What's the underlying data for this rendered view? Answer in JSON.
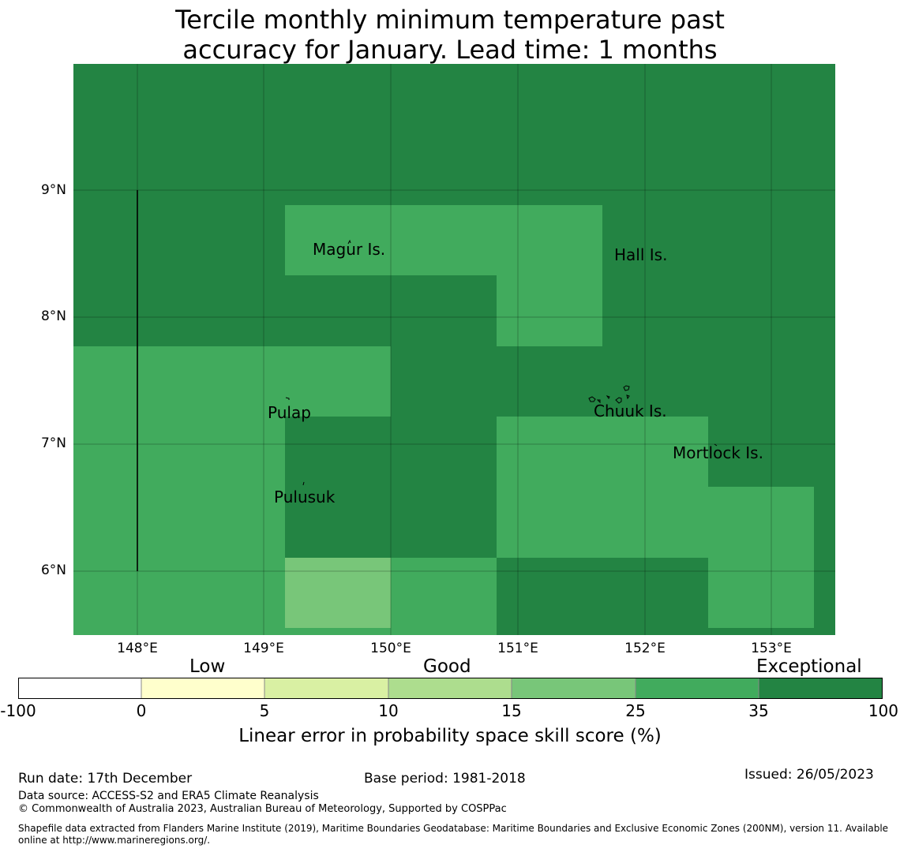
{
  "title_line1": "Tercile monthly minimum temperature past",
  "title_line2": "accuracy for January. Lead time: 1 months",
  "map": {
    "lon_range": [
      147.5,
      153.5
    ],
    "lat_range": [
      5.5,
      10.0
    ],
    "x_ticks": [
      "148°E",
      "149°E",
      "150°E",
      "151°E",
      "152°E",
      "153°E"
    ],
    "y_ticks": [
      "9°N",
      "8°N",
      "7°N",
      "6°N"
    ],
    "grid": true,
    "colors": {
      "exceptional": "#238443",
      "high": "#41ab5d",
      "good_mid": "#78c679"
    },
    "labels": {
      "magur": "Magur Is.",
      "hall": "Hall Is.",
      "pulap": "Pulap",
      "chuuk": "Chuuk Is.",
      "mortlock": "Mortlock Is.",
      "pulusuk": "Pulusuk"
    }
  },
  "colorbar": {
    "categories": {
      "low": "Low",
      "good": "Good",
      "exceptional": "Exceptional"
    },
    "ticks": [
      "-100",
      "0",
      "5",
      "10",
      "15",
      "25",
      "35",
      "100"
    ],
    "colors": [
      "#ffffff",
      "#ffffcc",
      "#d9f0a3",
      "#addd8e",
      "#78c679",
      "#41ab5d",
      "#238443"
    ],
    "label": "Linear error in probability space skill score (%)"
  },
  "footer": {
    "run_date": "Run date: 17th December",
    "base_period": "Base period: 1981-2018",
    "issued": "Issued: 26/05/2023",
    "data_source": "Data source: ACCESS-S2 and ERA5 Climate Reanalysis",
    "copyright": "© Commonwealth of Australia 2023, Australian Bureau of Meteorology, Supported by COSPPac",
    "shapefile_1": "Shapefile data extracted from Flanders Marine Institute (2019), Maritime Boundaries Geodatabase: Maritime Boundaries and Exclusive Economic Zones (200NM), version 11. Available",
    "shapefile_2": "online at http://www.marineregions.org/."
  }
}
